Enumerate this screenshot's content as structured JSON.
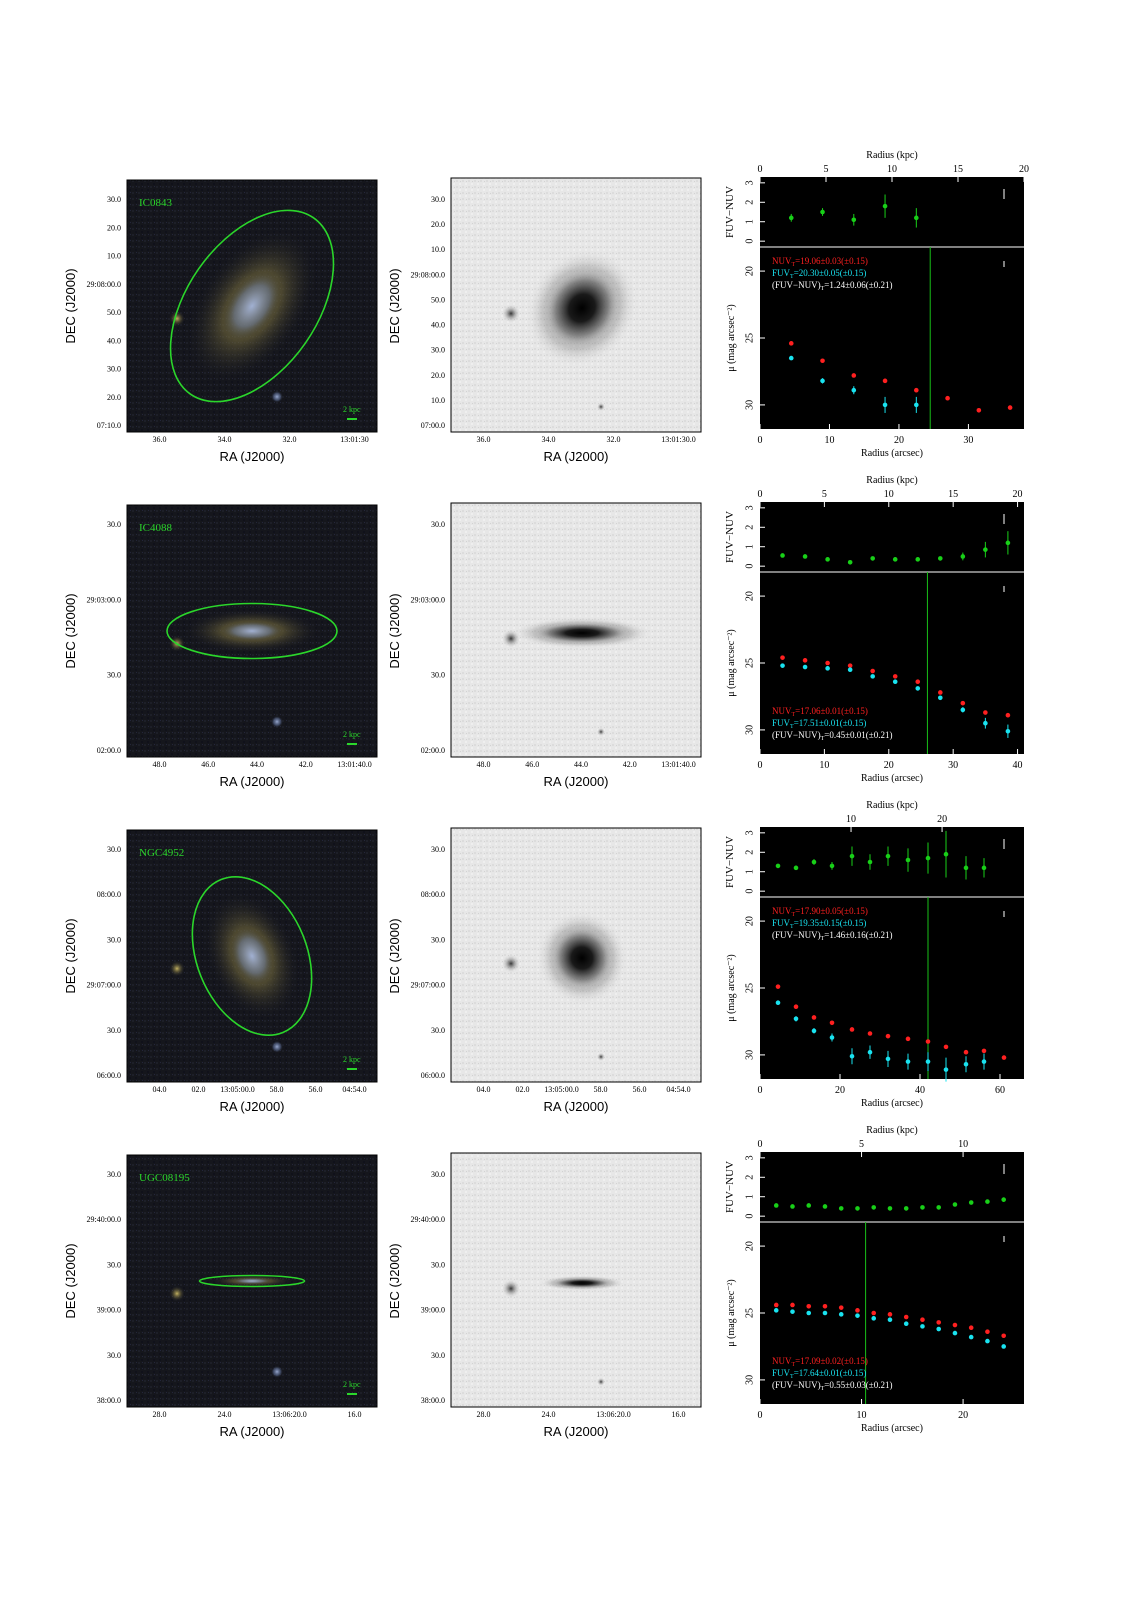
{
  "axis_labels": {
    "ra": "RA (J2000)",
    "dec": "DEC (J2000)",
    "radius_kpc": "Radius (kpc)",
    "radius_arcsec": "Radius (arcsec)",
    "color_axis": "FUV−NUV",
    "mu_axis": "μ (mag arcsec⁻²)"
  },
  "colors": {
    "nuv": "#ff2020",
    "fuv": "#19e3f0",
    "color_points": "#18d018",
    "label_green": "#2bd62b",
    "cut_line": "#18c018"
  },
  "panels": [
    {
      "name": "IC0843",
      "scale_bar": "2 kpc",
      "image": {
        "ra_ticks": [
          "36.0",
          "34.0",
          "32.0",
          "13:01:30"
        ],
        "ra_ticks_gray": [
          "36.0",
          "34.0",
          "32.0",
          "13:01:30.0"
        ],
        "dec_ticks": [
          "30.0",
          "20.0",
          "10.0",
          "29:08:00.0",
          "50.0",
          "40.0",
          "30.0",
          "20.0",
          "07:10.0"
        ],
        "dec_ticks_gray": [
          "30.0",
          "20.0",
          "10.0",
          "29:08:00.0",
          "50.0",
          "40.0",
          "30.0",
          "20.0",
          "10.0",
          "07:00.0"
        ],
        "ellipse": {
          "rx": 0.26,
          "ry": 0.43,
          "rot": 35
        }
      },
      "chart_data": {
        "type": "scatter",
        "kpc_ticks": [
          "0",
          "5",
          "10",
          "15",
          "20"
        ],
        "kpc_range": [
          0,
          20
        ],
        "arcsec_ticks": [
          "0",
          "10",
          "20",
          "30"
        ],
        "arcsec_range": [
          0,
          38
        ],
        "color_ticks": [
          "0",
          "1",
          "2",
          "3"
        ],
        "color_range": [
          -0.3,
          3.3
        ],
        "mu_ticks": [
          "20",
          "25",
          "30"
        ],
        "mu_range": [
          18.2,
          31.8
        ],
        "color_series": {
          "x": [
            4.5,
            9,
            13.5,
            18,
            22.5
          ],
          "y": [
            1.2,
            1.5,
            1.1,
            1.8,
            1.2
          ],
          "err": [
            0.2,
            0.2,
            0.3,
            0.6,
            0.5
          ]
        },
        "nuv": {
          "x": [
            4.5,
            9,
            13.5,
            18,
            22.5,
            27,
            31.5,
            36
          ],
          "y": [
            25.4,
            26.7,
            27.8,
            28.2,
            28.9,
            29.5,
            30.4,
            30.2
          ]
        },
        "fuv": {
          "x": [
            4.5,
            9,
            13.5,
            18,
            22.5
          ],
          "y": [
            26.5,
            28.2,
            28.9,
            30.0,
            30.0
          ],
          "err": [
            0.1,
            0.2,
            0.3,
            0.6,
            0.6
          ]
        },
        "cut_x": 24.5,
        "legend_pos": "top",
        "legend": [
          "NUV",
          "=19.06±0.03(±0.15)",
          "FUV",
          "=20.30±0.05(±0.15)",
          "(FUV−NUV)",
          "=1.24±0.06(±0.21)"
        ],
        "subscript": "T"
      }
    },
    {
      "name": "IC4088",
      "scale_bar": "2 kpc",
      "image": {
        "ra_ticks": [
          "48.0",
          "46.0",
          "44.0",
          "42.0",
          "13:01:40.0"
        ],
        "ra_ticks_gray": [
          "48.0",
          "46.0",
          "44.0",
          "42.0",
          "13:01:40.0"
        ],
        "dec_ticks": [
          "30.0",
          "29:03:00.0",
          "30.0",
          "02:00.0"
        ],
        "dec_ticks_gray": [
          "30.0",
          "29:03:00.0",
          "30.0",
          "02:00.0"
        ],
        "ellipse": {
          "rx": 0.34,
          "ry": 0.11,
          "rot": 0
        }
      },
      "chart_data": {
        "type": "scatter",
        "kpc_ticks": [
          "0",
          "5",
          "10",
          "15",
          "20"
        ],
        "kpc_range": [
          0,
          20.5
        ],
        "arcsec_ticks": [
          "0",
          "10",
          "20",
          "30",
          "40"
        ],
        "arcsec_range": [
          0,
          41
        ],
        "color_ticks": [
          "0",
          "1",
          "2",
          "3"
        ],
        "color_range": [
          -0.3,
          3.3
        ],
        "mu_ticks": [
          "20",
          "25",
          "30"
        ],
        "mu_range": [
          18.2,
          31.8
        ],
        "color_series": {
          "x": [
            3.5,
            7,
            10.5,
            14,
            17.5,
            21,
            24.5,
            28,
            31.5,
            35,
            38.5
          ],
          "y": [
            0.55,
            0.5,
            0.35,
            0.2,
            0.4,
            0.35,
            0.35,
            0.4,
            0.5,
            0.85,
            1.2
          ],
          "err": [
            0.05,
            0.05,
            0.05,
            0.05,
            0.05,
            0.05,
            0.05,
            0.1,
            0.2,
            0.4,
            0.6
          ]
        },
        "nuv": {
          "x": [
            3.5,
            7,
            10.5,
            14,
            17.5,
            21,
            24.5,
            28,
            31.5,
            35,
            38.5
          ],
          "y": [
            24.6,
            24.8,
            25.0,
            25.2,
            25.6,
            26.0,
            26.4,
            27.2,
            28.0,
            28.7,
            28.9
          ]
        },
        "fuv": {
          "x": [
            3.5,
            7,
            10.5,
            14,
            17.5,
            21,
            24.5,
            28,
            31.5,
            35,
            38.5
          ],
          "y": [
            25.2,
            25.3,
            25.4,
            25.5,
            26.0,
            26.4,
            26.9,
            27.6,
            28.5,
            29.5,
            30.1
          ],
          "err": [
            0.1,
            0.1,
            0.1,
            0.1,
            0.1,
            0.1,
            0.1,
            0.15,
            0.2,
            0.4,
            0.5
          ]
        },
        "cut_x": 26,
        "legend_pos": "bottom",
        "legend": [
          "NUV",
          "=17.06±0.01(±0.15)",
          "FUV",
          "=17.51±0.01(±0.15)",
          "(FUV−NUV)",
          "=0.45±0.01(±0.21)"
        ],
        "subscript": "T"
      }
    },
    {
      "name": "NGC4952",
      "scale_bar": "2 kpc",
      "image": {
        "ra_ticks": [
          "04.0",
          "02.0",
          "13:05:00.0",
          "58.0",
          "56.0",
          "04:54.0"
        ],
        "ra_ticks_gray": [
          "04.0",
          "02.0",
          "13:05:00.0",
          "58.0",
          "56.0",
          "04:54.0"
        ],
        "dec_ticks": [
          "30.0",
          "08:00.0",
          "30.0",
          "29:07:00.0",
          "30.0",
          "06:00.0"
        ],
        "dec_ticks_gray": [
          "30.0",
          "08:00.0",
          "30.0",
          "29:07:00.0",
          "30.0",
          "06:00.0"
        ],
        "ellipse": {
          "rx": 0.22,
          "ry": 0.33,
          "rot": -22
        }
      },
      "chart_data": {
        "type": "scatter",
        "kpc_ticks": [
          "10",
          "20"
        ],
        "kpc_values": [
          10,
          20
        ],
        "kpc_range": [
          0,
          29
        ],
        "arcsec_ticks": [
          "0",
          "20",
          "40",
          "60"
        ],
        "arcsec_range": [
          0,
          66
        ],
        "color_ticks": [
          "0",
          "1",
          "2",
          "3"
        ],
        "color_range": [
          -0.3,
          3.3
        ],
        "mu_ticks": [
          "20",
          "25",
          "30"
        ],
        "mu_range": [
          18.2,
          31.8
        ],
        "color_series": {
          "x": [
            4.5,
            9,
            13.5,
            18,
            23,
            27.5,
            32,
            37,
            42,
            46.5,
            51.5,
            56
          ],
          "y": [
            1.3,
            1.2,
            1.5,
            1.3,
            1.8,
            1.5,
            1.8,
            1.6,
            1.7,
            1.9,
            1.2,
            1.2
          ],
          "err": [
            0.1,
            0.1,
            0.15,
            0.2,
            0.5,
            0.4,
            0.5,
            0.6,
            0.8,
            1.2,
            0.6,
            0.5
          ]
        },
        "nuv": {
          "x": [
            4.5,
            9,
            13.5,
            18,
            23,
            27.5,
            32,
            37,
            42,
            46.5,
            51.5,
            56,
            61
          ],
          "y": [
            24.9,
            26.4,
            27.2,
            27.6,
            28.1,
            28.4,
            28.6,
            28.8,
            29.0,
            29.4,
            29.8,
            29.7,
            30.2
          ]
        },
        "fuv": {
          "x": [
            4.5,
            9,
            13.5,
            18,
            23,
            27.5,
            32,
            37,
            42,
            46.5,
            51.5,
            56
          ],
          "y": [
            26.1,
            27.3,
            28.2,
            28.7,
            30.1,
            29.8,
            30.3,
            30.5,
            30.5,
            31.1,
            30.7,
            30.5
          ],
          "err": [
            0.1,
            0.2,
            0.2,
            0.3,
            0.6,
            0.5,
            0.6,
            0.6,
            0.7,
            0.9,
            0.6,
            0.6
          ]
        },
        "cut_x": 42,
        "legend_pos": "top",
        "legend": [
          "NUV",
          "=17.90±0.05(±0.15)",
          "FUV",
          "=19.35±0.15(±0.15)",
          "(FUV−NUV)",
          "=1.46±0.16(±0.21)"
        ],
        "subscript": "T"
      }
    },
    {
      "name": "UGC08195",
      "scale_bar": "2 kpc",
      "image": {
        "ra_ticks": [
          "28.0",
          "24.0",
          "13:06:20.0",
          "16.0"
        ],
        "ra_ticks_gray": [
          "28.0",
          "24.0",
          "13:06:20.0",
          "16.0"
        ],
        "dec_ticks": [
          "30.0",
          "29:40:00.0",
          "30.0",
          "39:00.0",
          "30.0",
          "38:00.0"
        ],
        "dec_ticks_gray": [
          "30.0",
          "29:40:00.0",
          "30.0",
          "39:00.0",
          "30.0",
          "38:00.0"
        ],
        "ellipse": {
          "rx": 0.21,
          "ry": 0.022,
          "rot": 0
        }
      },
      "chart_data": {
        "type": "scatter",
        "kpc_ticks": [
          "0",
          "5",
          "10"
        ],
        "kpc_range": [
          0,
          13
        ],
        "arcsec_ticks": [
          "0",
          "10",
          "20"
        ],
        "arcsec_range": [
          0,
          26
        ],
        "color_ticks": [
          "0",
          "1",
          "2",
          "3"
        ],
        "color_range": [
          -0.3,
          3.3
        ],
        "mu_ticks": [
          "20",
          "25",
          "30"
        ],
        "mu_range": [
          18.2,
          31.8
        ],
        "color_series": {
          "x": [
            1.6,
            3.2,
            4.8,
            6.4,
            8,
            9.6,
            11.2,
            12.8,
            14.4,
            16,
            17.6,
            19.2,
            20.8,
            22.4,
            24
          ],
          "y": [
            0.55,
            0.5,
            0.55,
            0.5,
            0.4,
            0.4,
            0.45,
            0.4,
            0.4,
            0.45,
            0.45,
            0.6,
            0.7,
            0.75,
            0.85
          ],
          "err": [
            0.03,
            0.03,
            0.03,
            0.03,
            0.03,
            0.03,
            0.03,
            0.03,
            0.03,
            0.03,
            0.05,
            0.05,
            0.08,
            0.1,
            0.12
          ]
        },
        "nuv": {
          "x": [
            1.6,
            3.2,
            4.8,
            6.4,
            8,
            9.6,
            11.2,
            12.8,
            14.4,
            16,
            17.6,
            19.2,
            20.8,
            22.4,
            24
          ],
          "y": [
            24.4,
            24.4,
            24.5,
            24.5,
            24.6,
            24.8,
            25.0,
            25.1,
            25.3,
            25.5,
            25.7,
            25.9,
            26.1,
            26.4,
            26.7
          ]
        },
        "fuv": {
          "x": [
            1.6,
            3.2,
            4.8,
            6.4,
            8,
            9.6,
            11.2,
            12.8,
            14.4,
            16,
            17.6,
            19.2,
            20.8,
            22.4,
            24
          ],
          "y": [
            24.8,
            24.9,
            25.0,
            25.0,
            25.1,
            25.2,
            25.4,
            25.5,
            25.8,
            26.0,
            26.2,
            26.5,
            26.8,
            27.1,
            27.5
          ],
          "err": [
            0.05,
            0.05,
            0.05,
            0.05,
            0.05,
            0.05,
            0.05,
            0.05,
            0.05,
            0.05,
            0.05,
            0.05,
            0.08,
            0.1,
            0.12
          ]
        },
        "cut_x": 10.4,
        "legend_pos": "bottom",
        "legend": [
          "NUV",
          "=17.09±0.02(±0.15)",
          "FUV",
          "=17.64±0.01(±0.15)",
          "(FUV−NUV)",
          "=0.55±0.03(±0.21)"
        ],
        "subscript": "T"
      }
    }
  ]
}
